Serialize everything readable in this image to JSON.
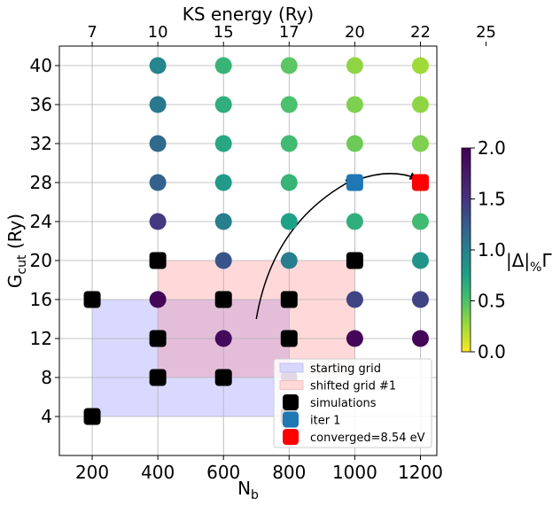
{
  "chart_data": {
    "type": "scatter",
    "xlabel": "N",
    "xlabel_sub": "b",
    "ylabel": "G",
    "ylabel_sub": "cut",
    "ylabel_suffix": " (Ry)",
    "top_xlabel": "KS energy (Ry)",
    "xlim": [
      100,
      1250
    ],
    "ylim": [
      0,
      42
    ],
    "x_ticks": [
      200,
      400,
      600,
      800,
      1000,
      1200
    ],
    "y_ticks": [
      4,
      8,
      12,
      16,
      20,
      24,
      28,
      32,
      36,
      40
    ],
    "top_ticks": [
      {
        "x": 200,
        "label": "7"
      },
      {
        "x": 400,
        "label": "10"
      },
      {
        "x": 600,
        "label": "15"
      },
      {
        "x": 800,
        "label": "17"
      },
      {
        "x": 1000,
        "label": "20"
      },
      {
        "x": 1200,
        "label": "22"
      },
      {
        "x": 1400,
        "label": "25"
      }
    ],
    "grid": true,
    "regions": [
      {
        "name": "starting grid",
        "x": [
          200,
          800
        ],
        "y": [
          4,
          16
        ],
        "color": "#8080ff",
        "opacity": 0.3
      },
      {
        "name": "shifted grid #1",
        "x": [
          400,
          1000
        ],
        "y": [
          8,
          20
        ],
        "color": "#ff8080",
        "opacity": 0.3
      }
    ],
    "colormap_points": [
      {
        "x": 400,
        "y": 40,
        "v": 0.95
      },
      {
        "x": 400,
        "y": 36,
        "v": 1.05
      },
      {
        "x": 400,
        "y": 32,
        "v": 1.15
      },
      {
        "x": 400,
        "y": 28,
        "v": 1.2
      },
      {
        "x": 400,
        "y": 24,
        "v": 1.45
      },
      {
        "x": 400,
        "y": 16,
        "v": 1.95
      },
      {
        "x": 600,
        "y": 40,
        "v": 0.6
      },
      {
        "x": 600,
        "y": 36,
        "v": 0.65
      },
      {
        "x": 600,
        "y": 32,
        "v": 0.7
      },
      {
        "x": 600,
        "y": 28,
        "v": 0.8
      },
      {
        "x": 600,
        "y": 24,
        "v": 1.0
      },
      {
        "x": 600,
        "y": 20,
        "v": 1.3
      },
      {
        "x": 600,
        "y": 12,
        "v": 1.9
      },
      {
        "x": 800,
        "y": 40,
        "v": 0.45
      },
      {
        "x": 800,
        "y": 36,
        "v": 0.5
      },
      {
        "x": 800,
        "y": 32,
        "v": 0.55
      },
      {
        "x": 800,
        "y": 28,
        "v": 0.6
      },
      {
        "x": 800,
        "y": 24,
        "v": 0.75
      },
      {
        "x": 800,
        "y": 20,
        "v": 1.0
      },
      {
        "x": 800,
        "y": 8,
        "v": 1.95
      },
      {
        "x": 1000,
        "y": 40,
        "v": 0.3
      },
      {
        "x": 1000,
        "y": 36,
        "v": 0.35
      },
      {
        "x": 1000,
        "y": 32,
        "v": 0.4
      },
      {
        "x": 1000,
        "y": 24,
        "v": 0.65
      },
      {
        "x": 1000,
        "y": 16,
        "v": 1.4
      },
      {
        "x": 1000,
        "y": 12,
        "v": 1.95
      },
      {
        "x": 1200,
        "y": 40,
        "v": 0.25
      },
      {
        "x": 1200,
        "y": 36,
        "v": 0.3
      },
      {
        "x": 1200,
        "y": 32,
        "v": 0.35
      },
      {
        "x": 1200,
        "y": 24,
        "v": 0.55
      },
      {
        "x": 1200,
        "y": 20,
        "v": 0.85
      },
      {
        "x": 1200,
        "y": 16,
        "v": 1.4
      },
      {
        "x": 1200,
        "y": 12,
        "v": 1.95
      }
    ],
    "simulations": [
      {
        "x": 200,
        "y": 4
      },
      {
        "x": 200,
        "y": 16
      },
      {
        "x": 400,
        "y": 8
      },
      {
        "x": 400,
        "y": 12
      },
      {
        "x": 400,
        "y": 20
      },
      {
        "x": 600,
        "y": 8
      },
      {
        "x": 600,
        "y": 16
      },
      {
        "x": 800,
        "y": 4
      },
      {
        "x": 800,
        "y": 12
      },
      {
        "x": 800,
        "y": 16
      },
      {
        "x": 1000,
        "y": 20
      }
    ],
    "iter1": [
      {
        "x": 1000,
        "y": 28
      }
    ],
    "converged": [
      {
        "x": 1200,
        "y": 28
      }
    ],
    "arrows": [
      {
        "from": [
          700,
          14
        ],
        "ctrl": [
          750,
          24
        ],
        "to": [
          995,
          28.3
        ]
      },
      {
        "from": [
          1010,
          28.3
        ],
        "ctrl": [
          1110,
          29.5
        ],
        "to": [
          1190,
          28.4
        ]
      }
    ],
    "legend": [
      {
        "label": "starting grid",
        "kind": "patch",
        "color": "#d8d8ff",
        "border": "#b8b8f0"
      },
      {
        "label": "shifted grid #1",
        "kind": "patch",
        "color": "#ffd8d8",
        "border": "#f0b8b8"
      },
      {
        "label": "simulations",
        "kind": "square",
        "color": "#000000"
      },
      {
        "label": "iter 1",
        "kind": "square",
        "color": "#1f77b4"
      },
      {
        "label": "converged=8.54 eV",
        "kind": "square",
        "color": "#ff0000"
      }
    ],
    "legend_position": "lower-right",
    "colorbar": {
      "label": "|Δ|",
      "label_sub": "%",
      "label_suffix": "Γ",
      "min": 0.0,
      "max": 2.0,
      "ticks": [
        "0.0",
        "0.5",
        "1.0",
        "1.5",
        "2.0"
      ],
      "colormap": "viridis_r"
    }
  }
}
